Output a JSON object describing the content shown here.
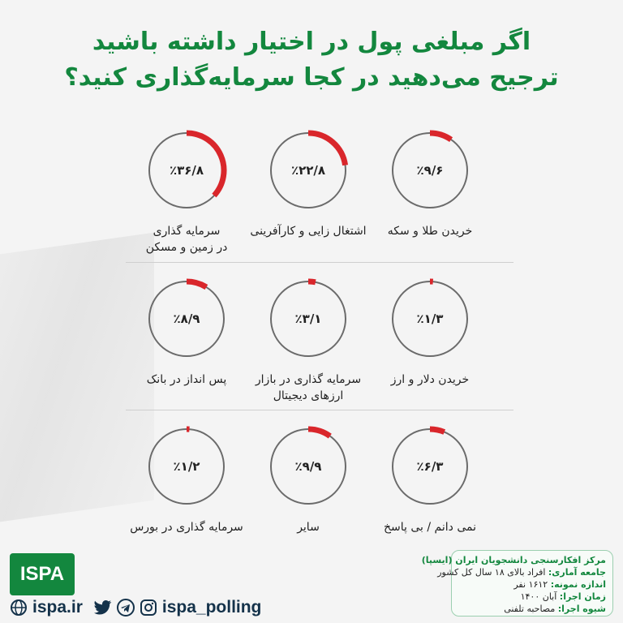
{
  "title": {
    "line1": "اگر مبلغی پول در اختیار داشته باشید",
    "line2": "ترجیح می‌دهید در کجا سرمایه‌گذاری کنید؟"
  },
  "colors": {
    "accent": "#d9262b",
    "ring": "#6b6b6b",
    "brand": "#13873e"
  },
  "chart_data": {
    "type": "pie",
    "unit": "%",
    "items": [
      {
        "label": "خریدن طلا و سکه",
        "value": 9.6,
        "display": "٪۹/۶"
      },
      {
        "label": "اشتغال زایی و کارآفرینی",
        "value": 22.8,
        "display": "٪۲۲/۸"
      },
      {
        "label": "سرمایه گذاری در زمین و مسکن",
        "label_lines": [
          "سرمایه گذاری",
          "در زمین و مسکن"
        ],
        "value": 36.8,
        "display": "٪۳۶/۸"
      },
      {
        "label": "خریدن دلار و ارز",
        "value": 1.3,
        "display": "٪۱/۳"
      },
      {
        "label": "سرمایه گذاری در بازار ارزهای دیجیتال",
        "label_lines": [
          "سرمایه گذاری در بازار",
          "ارزهای دیجیتال"
        ],
        "value": 3.1,
        "display": "٪۳/۱"
      },
      {
        "label": "پس انداز در بانک",
        "value": 8.9,
        "display": "٪۸/۹"
      },
      {
        "label": "نمی دانم / بی پاسخ",
        "value": 6.3,
        "display": "٪۶/۳"
      },
      {
        "label": "سایر",
        "value": 9.9,
        "display": "٪۹/۹"
      },
      {
        "label": "سرمایه گذاری در بورس",
        "value": 1.2,
        "display": "٪۱/۲"
      }
    ]
  },
  "footer": {
    "logo_text": "ISPA",
    "site": "ispa.ir",
    "handle": "ispa_polling",
    "info": {
      "org": "مرکز افکارسنجی دانشجویان ایران (ایسپا)",
      "population_key": "جامعه آماری:",
      "population_val": "افراد بالای ۱۸ سال کل کشور",
      "sample_key": "اندازه نمونه:",
      "sample_val": "۱۶۱۲ نفر",
      "time_key": "زمان اجرا:",
      "time_val": "آبان ۱۴۰۰",
      "method_key": "شیوه اجرا:",
      "method_val": "مصاحبه تلفنی"
    }
  }
}
